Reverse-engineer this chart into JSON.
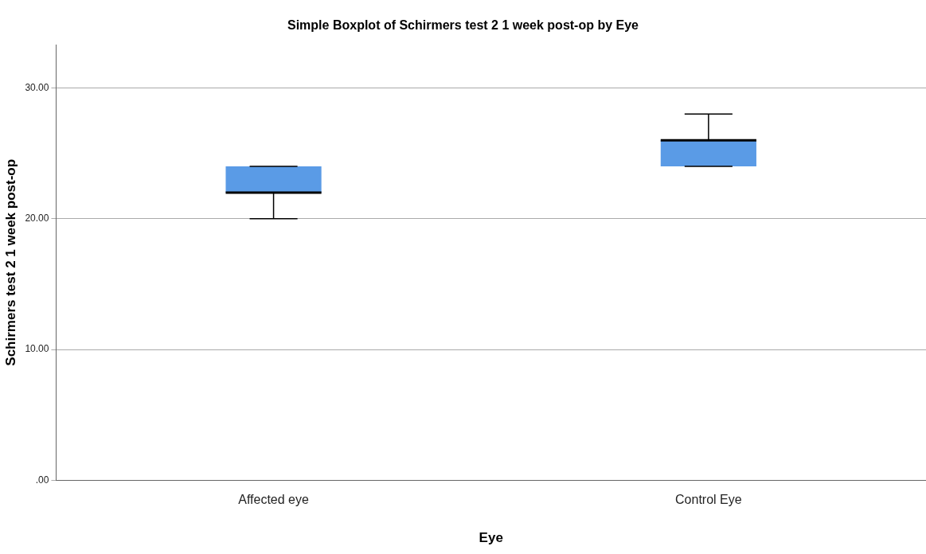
{
  "chart_data": {
    "type": "box",
    "title": "Simple Boxplot of Schirmers test 2 1 week post-op by Eye",
    "xlabel": "Eye",
    "ylabel": "Schirmers test 2 1 week post-op",
    "categories": [
      "Affected eye",
      "Control Eye"
    ],
    "boxes": [
      {
        "low": 20,
        "q1": 22,
        "median": 22,
        "q3": 24,
        "high": 24
      },
      {
        "low": 24,
        "q1": 24,
        "median": 26,
        "q3": 26,
        "high": 28
      }
    ],
    "color": "#5a9be6",
    "ylim": [
      0,
      33.3
    ],
    "yticks": [
      {
        "value": 0,
        "label": ".00"
      },
      {
        "value": 10,
        "label": "10.00"
      },
      {
        "value": 20,
        "label": "20.00"
      },
      {
        "value": 30,
        "label": "30.00"
      }
    ],
    "grid": "y",
    "legend": false
  }
}
